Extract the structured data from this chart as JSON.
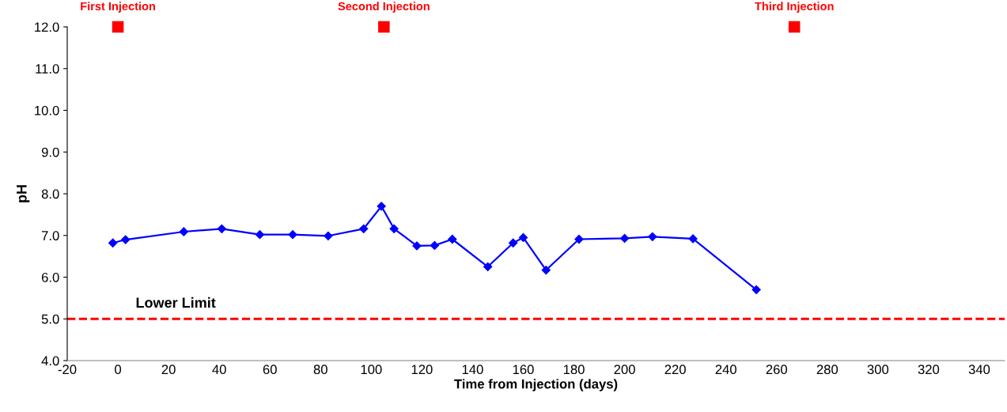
{
  "chart_data": {
    "type": "line",
    "xlabel": "Time from Injection (days)",
    "ylabel": "pH",
    "xlim": [
      -20,
      350
    ],
    "xticks": [
      -20,
      0,
      20,
      40,
      60,
      80,
      100,
      120,
      140,
      160,
      180,
      200,
      220,
      240,
      260,
      280,
      300,
      320,
      340
    ],
    "ylim": [
      4,
      12
    ],
    "yticks": [
      {
        "value": 4,
        "label": "4.0"
      },
      {
        "value": 5,
        "label": "5.0"
      },
      {
        "value": 6,
        "label": "6.0"
      },
      {
        "value": 7,
        "label": "7.0"
      },
      {
        "value": 8,
        "label": "8.0"
      },
      {
        "value": 9,
        "label": "9.0"
      },
      {
        "value": 10,
        "label": "10.0"
      },
      {
        "value": 11,
        "label": "11.0"
      },
      {
        "value": 12,
        "label": "12.0"
      }
    ],
    "grid": false,
    "series": [
      {
        "color": "#0000ff",
        "marker": "diamond",
        "line_style": "solid",
        "x": [
          -2,
          3,
          26,
          41,
          56,
          69,
          83,
          97,
          104,
          109,
          118,
          125,
          132,
          146,
          156,
          160,
          169,
          182,
          200,
          211,
          227,
          252
        ],
        "values": [
          6.82,
          6.9,
          7.09,
          7.16,
          7.02,
          7.02,
          6.99,
          7.16,
          7.7,
          7.16,
          6.75,
          6.76,
          6.91,
          6.25,
          6.82,
          6.95,
          6.17,
          6.91,
          6.93,
          6.97,
          6.92,
          5.7
        ]
      },
      {
        "type": "scatter",
        "color": "#ff0000",
        "marker": "square",
        "x": [
          0,
          105,
          267
        ],
        "values": [
          12,
          12,
          12
        ]
      }
    ],
    "ref_lines": [
      {
        "axis": "y",
        "value": 5,
        "label": "Lower Limit",
        "color": "#ff0000",
        "line_style": "dashed"
      }
    ],
    "annotations": [
      {
        "text": "First Injection",
        "x": 0,
        "y": 12
      },
      {
        "text": "Second Injection",
        "x": 105,
        "y": 12
      },
      {
        "text": "Third Injection",
        "x": 267,
        "y": 12
      }
    ]
  }
}
